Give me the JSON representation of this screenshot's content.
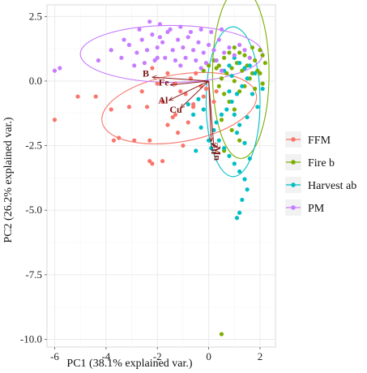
{
  "chart_data": {
    "type": "scatter",
    "title": "",
    "xlabel": "PC1 (38.1% explained var.)",
    "ylabel": "PC2 (26.2% explained var.)",
    "xlim": [
      -6.3,
      2.6
    ],
    "ylim": [
      -10.3,
      2.95
    ],
    "x_ticks": [
      -6,
      -4,
      -2,
      0,
      2
    ],
    "y_ticks": [
      2.5,
      0.0,
      -2.5,
      -5.0,
      -7.5,
      -10.0
    ],
    "x_tick_labels": [
      "-6",
      "-4",
      "-2",
      "0",
      "2"
    ],
    "y_tick_labels": [
      "2.5",
      "0.0",
      "-2.5",
      "-5.0",
      "-7.5",
      "-10.0"
    ],
    "grid": true,
    "legend_position": "right",
    "colors": {
      "FFM": "#F8766D",
      "Fire b": "#7CAE00",
      "Harvest ab": "#00BFC4",
      "PM": "#C77CFF",
      "arrow": "#8B1A1A"
    },
    "series": [
      {
        "name": "FFM",
        "points": [
          [
            -6.0,
            -1.5
          ],
          [
            -5.1,
            -0.6
          ],
          [
            -4.4,
            -0.6
          ],
          [
            -3.8,
            -1.1
          ],
          [
            -3.1,
            -1.0
          ],
          [
            -3.7,
            -2.3
          ],
          [
            -3.5,
            -2.2
          ],
          [
            -2.9,
            -2.3
          ],
          [
            -2.3,
            -2.3
          ],
          [
            -2.3,
            -3.1
          ],
          [
            -2.2,
            -3.2
          ],
          [
            -1.8,
            -3.1
          ],
          [
            -1.0,
            -2.5
          ],
          [
            -1.2,
            -2.0
          ],
          [
            -1.6,
            -1.7
          ],
          [
            -1.3,
            -1.3
          ],
          [
            -0.6,
            -1.0
          ],
          [
            -0.2,
            -0.6
          ],
          [
            -0.3,
            -0.2
          ],
          [
            -0.5,
            0.3
          ],
          [
            -2.2,
            0.5
          ],
          [
            -2.0,
            -0.1
          ],
          [
            -1.6,
            0.3
          ],
          [
            -1.3,
            -0.1
          ],
          [
            -0.9,
            -0.5
          ],
          [
            -1.8,
            -0.8
          ],
          [
            -2.6,
            -0.4
          ],
          [
            -2.4,
            -1.0
          ],
          [
            -1.4,
            -1.4
          ],
          [
            -0.8,
            -1.6
          ],
          [
            -0.6,
            -0.9
          ],
          [
            -1.1,
            -0.4
          ],
          [
            -0.7,
            0.1
          ],
          [
            -0.1,
            -0.3
          ],
          [
            0.2,
            -0.8
          ],
          [
            0.3,
            -0.4
          ]
        ]
      },
      {
        "name": "Fire b",
        "points": [
          [
            0.4,
            0.6
          ],
          [
            0.6,
            0.9
          ],
          [
            0.8,
            1.1
          ],
          [
            1.0,
            1.3
          ],
          [
            1.2,
            1.1
          ],
          [
            1.4,
            1.0
          ],
          [
            1.6,
            0.9
          ],
          [
            1.8,
            0.8
          ],
          [
            2.0,
            1.2
          ],
          [
            2.1,
            1.0
          ],
          [
            2.2,
            0.7
          ],
          [
            1.9,
            0.4
          ],
          [
            1.7,
            0.3
          ],
          [
            1.5,
            0.6
          ],
          [
            1.3,
            0.4
          ],
          [
            1.1,
            0.7
          ],
          [
            0.9,
            0.5
          ],
          [
            0.7,
            0.3
          ],
          [
            0.5,
            0.1
          ],
          [
            0.3,
            0.5
          ],
          [
            0.4,
            -0.2
          ],
          [
            0.6,
            -0.5
          ],
          [
            0.8,
            -0.8
          ],
          [
            1.0,
            -1.1
          ],
          [
            1.2,
            -0.4
          ],
          [
            1.4,
            -0.2
          ],
          [
            1.6,
            0.1
          ],
          [
            1.8,
            -0.3
          ],
          [
            2.0,
            0.3
          ],
          [
            2.1,
            -0.1
          ],
          [
            0.2,
            0.8
          ],
          [
            0.0,
            0.6
          ],
          [
            -0.2,
            0.4
          ],
          [
            1.0,
            0.0
          ],
          [
            1.7,
            1.3
          ],
          [
            0.5,
            -1.5
          ],
          [
            0.9,
            -1.9
          ],
          [
            1.2,
            -2.3
          ],
          [
            0.6,
            -2.7
          ],
          [
            0.5,
            -9.8
          ]
        ]
      },
      {
        "name": "Harvest ab",
        "points": [
          [
            0.6,
            0.4
          ],
          [
            0.8,
            0.6
          ],
          [
            1.0,
            0.9
          ],
          [
            1.2,
            0.7
          ],
          [
            1.4,
            0.5
          ],
          [
            1.6,
            0.6
          ],
          [
            1.8,
            0.3
          ],
          [
            1.5,
            0.1
          ],
          [
            1.3,
            -0.2
          ],
          [
            1.1,
            -0.5
          ],
          [
            0.9,
            -0.8
          ],
          [
            0.7,
            -1.1
          ],
          [
            0.5,
            -1.3
          ],
          [
            0.3,
            -1.6
          ],
          [
            0.2,
            -1.9
          ],
          [
            0.4,
            -2.3
          ],
          [
            0.6,
            -2.6
          ],
          [
            0.8,
            -2.9
          ],
          [
            1.0,
            -3.2
          ],
          [
            1.2,
            -3.5
          ],
          [
            1.4,
            -3.8
          ],
          [
            1.5,
            -4.2
          ],
          [
            1.3,
            -4.6
          ],
          [
            1.2,
            -5.1
          ],
          [
            1.1,
            -5.3
          ],
          [
            1.6,
            -3.0
          ],
          [
            1.4,
            -2.4
          ],
          [
            1.2,
            -1.7
          ],
          [
            1.0,
            -1.3
          ],
          [
            0.8,
            -0.4
          ],
          [
            -0.2,
            -1.1
          ],
          [
            -0.4,
            -0.7
          ],
          [
            -0.6,
            -1.3
          ],
          [
            -0.8,
            -0.9
          ],
          [
            -0.3,
            -1.8
          ],
          [
            0.0,
            -2.3
          ],
          [
            -0.5,
            -2.7
          ],
          [
            0.1,
            -2.6
          ],
          [
            0.3,
            0.8
          ],
          [
            0.9,
            0.2
          ],
          [
            1.7,
            -0.5
          ],
          [
            1.9,
            -1.0
          ],
          [
            2.1,
            -0.3
          ],
          [
            1.1,
            -2.0
          ],
          [
            1.5,
            -1.4
          ]
        ]
      },
      {
        "name": "PM",
        "points": [
          [
            -6.0,
            0.4
          ],
          [
            -5.8,
            0.5
          ],
          [
            -4.3,
            0.8
          ],
          [
            -3.8,
            1.2
          ],
          [
            -3.4,
            0.9
          ],
          [
            -3.1,
            1.4
          ],
          [
            -2.8,
            1.1
          ],
          [
            -2.6,
            1.6
          ],
          [
            -2.4,
            1.2
          ],
          [
            -2.2,
            1.8
          ],
          [
            -2.0,
            1.3
          ],
          [
            -1.8,
            1.5
          ],
          [
            -1.6,
            1.9
          ],
          [
            -1.4,
            1.2
          ],
          [
            -1.2,
            1.6
          ],
          [
            -1.0,
            1.3
          ],
          [
            -0.8,
            1.7
          ],
          [
            -0.6,
            1.2
          ],
          [
            -0.4,
            1.5
          ],
          [
            -0.2,
            1.1
          ],
          [
            0.0,
            1.4
          ],
          [
            0.2,
            1.2
          ],
          [
            0.4,
            1.6
          ],
          [
            0.6,
            1.1
          ],
          [
            0.8,
            1.3
          ],
          [
            1.0,
            1.0
          ],
          [
            1.2,
            1.4
          ],
          [
            1.4,
            1.2
          ],
          [
            1.6,
            0.9
          ],
          [
            -2.9,
            0.6
          ],
          [
            -2.5,
            0.7
          ],
          [
            -2.1,
            0.8
          ],
          [
            -1.7,
            0.9
          ],
          [
            -1.3,
            0.8
          ],
          [
            -0.9,
            0.9
          ],
          [
            -0.5,
            0.8
          ],
          [
            -0.1,
            0.7
          ],
          [
            0.3,
            0.8
          ],
          [
            -1.9,
            2.2
          ],
          [
            -1.5,
            2.0
          ],
          [
            -1.1,
            2.1
          ],
          [
            -0.7,
            1.9
          ],
          [
            -0.3,
            2.0
          ],
          [
            0.1,
            1.9
          ],
          [
            0.5,
            2.0
          ],
          [
            -3.3,
            1.6
          ],
          [
            -2.7,
            2.0
          ],
          [
            -2.3,
            2.3
          ],
          [
            -1.9,
            1.7
          ],
          [
            -1.1,
            0.6
          ],
          [
            -0.3,
            0.5
          ],
          [
            0.5,
            0.4
          ],
          [
            -2.0,
            0.9
          ]
        ]
      }
    ],
    "ellipses": [
      {
        "name": "FFM",
        "cx": -1.15,
        "cy": -1.05,
        "rx": 3.05,
        "ry": 1.3,
        "angle_deg": 10
      },
      {
        "name": "Fire b",
        "cx": 1.25,
        "cy": 0.3,
        "rx": 1.1,
        "ry": 3.3,
        "angle_deg": 0
      },
      {
        "name": "Harvest ab",
        "cx": 0.95,
        "cy": -0.8,
        "rx": 1.05,
        "ry": 2.9,
        "angle_deg": 0
      },
      {
        "name": "PM",
        "cx": -1.45,
        "cy": 1.05,
        "rx": 3.55,
        "ry": 1.1,
        "angle_deg": 0
      }
    ],
    "arrows": [
      {
        "label": "B",
        "x": -2.2,
        "y": 0.15
      },
      {
        "label": "Fe",
        "x": -1.5,
        "y": -0.15
      },
      {
        "label": "Al",
        "x": -1.55,
        "y": -0.75
      },
      {
        "label": "Cu",
        "x": -1.1,
        "y": -1.05
      },
      {
        "label": "Zn",
        "x": 0.1,
        "y": -2.35
      },
      {
        "label": "Mn",
        "x": 0.2,
        "y": -2.55
      }
    ],
    "arrow_origin": [
      0.0,
      0.0
    ]
  },
  "legend": {
    "items": [
      {
        "label": "FFM",
        "color": "#F8766D"
      },
      {
        "label": "Fire b",
        "color": "#7CAE00"
      },
      {
        "label": "Harvest ab",
        "color": "#00BFC4"
      },
      {
        "label": "PM",
        "color": "#C77CFF"
      }
    ]
  }
}
